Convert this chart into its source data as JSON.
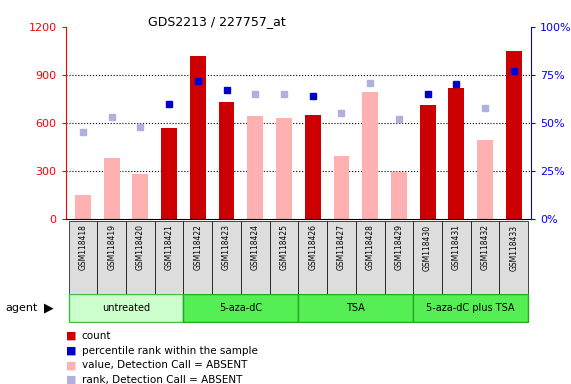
{
  "title": "GDS2213 / 227757_at",
  "samples": [
    "GSM118418",
    "GSM118419",
    "GSM118420",
    "GSM118421",
    "GSM118422",
    "GSM118423",
    "GSM118424",
    "GSM118425",
    "GSM118426",
    "GSM118427",
    "GSM118428",
    "GSM118429",
    "GSM118430",
    "GSM118431",
    "GSM118432",
    "GSM118433"
  ],
  "bar_values": [
    150,
    380,
    280,
    570,
    1020,
    730,
    640,
    630,
    650,
    390,
    790,
    290,
    710,
    820,
    490,
    1050
  ],
  "rank_values": [
    45,
    53,
    48,
    60,
    72,
    67,
    65,
    65,
    64,
    55,
    71,
    52,
    65,
    70,
    58,
    77
  ],
  "is_absent": [
    true,
    true,
    true,
    false,
    false,
    false,
    true,
    true,
    false,
    true,
    true,
    true,
    false,
    false,
    true,
    false
  ],
  "color_bar_absent": "#ffb0b0",
  "color_bar_present": "#cc0000",
  "color_rank_absent": "#b0b0e0",
  "color_rank_present": "#0000cc",
  "ylim_left": [
    0,
    1200
  ],
  "ylim_right": [
    0,
    100
  ],
  "yticks_left": [
    0,
    300,
    600,
    900,
    1200
  ],
  "yticks_right": [
    0,
    25,
    50,
    75,
    100
  ],
  "groups": [
    {
      "label": "untreated",
      "start": 0,
      "end": 3,
      "color": "#ccffcc",
      "border": "#44bb44"
    },
    {
      "label": "5-aza-dC",
      "start": 4,
      "end": 7,
      "color": "#55ee55",
      "border": "#22aa22"
    },
    {
      "label": "TSA",
      "start": 8,
      "end": 11,
      "color": "#55ee55",
      "border": "#22aa22"
    },
    {
      "label": "5-aza-dC plus TSA",
      "start": 12,
      "end": 15,
      "color": "#55ee55",
      "border": "#22aa22"
    }
  ],
  "legend_items": [
    {
      "color": "#cc0000",
      "label": "count"
    },
    {
      "color": "#0000cc",
      "label": "percentile rank within the sample"
    },
    {
      "color": "#ffb0b0",
      "label": "value, Detection Call = ABSENT"
    },
    {
      "color": "#b0b0e0",
      "label": "rank, Detection Call = ABSENT"
    }
  ],
  "agent_label": "agent",
  "bar_width": 0.55,
  "marker_size": 5,
  "xticklabel_bg": "#dddddd"
}
